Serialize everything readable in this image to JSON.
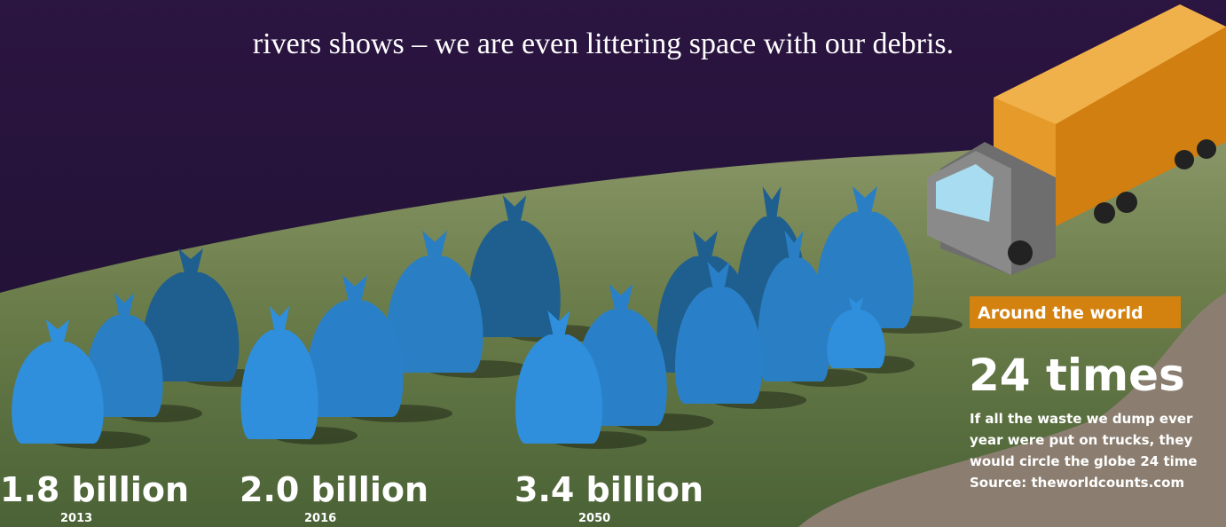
{
  "intro": {
    "line": "rivers shows – we are even littering space with our debris."
  },
  "stats": [
    {
      "value": "1.8 billion",
      "year": "2013"
    },
    {
      "value": "2.0 billion",
      "year": "2016"
    },
    {
      "value": "3.4 billion",
      "year": "2050"
    }
  ],
  "panel": {
    "tag": "Around the world",
    "headline": "24 times",
    "body": [
      "If all the waste we dump ever",
      "year were put on trucks, they",
      "would circle the globe 24 time",
      "Source: theworldcounts.com"
    ]
  }
}
